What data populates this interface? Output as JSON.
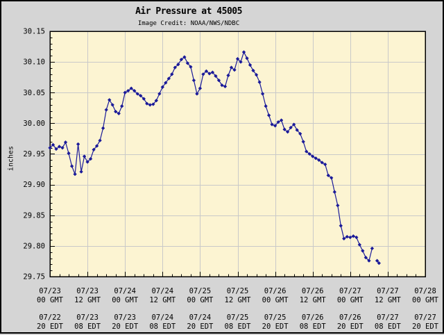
{
  "title": "Air Pressure at 45005",
  "subtitle": "Image Credit: NOAA/NWS/NDBC",
  "colors": {
    "page_background": "#d5d5d5",
    "plot_background": "#fcf4d2",
    "grid": "#c9c9c9",
    "line": "#1a1a99",
    "border": "#000000",
    "text": "#000000"
  },
  "chart_data": {
    "type": "line",
    "title": "Air Pressure at 45005",
    "subtitle": "Image Credit: NOAA/NWS/NDBC",
    "ylabel": "inches",
    "xlabel": "",
    "ylim": [
      29.75,
      30.15
    ],
    "y_tick_step": 0.05,
    "y_minor_step": 0.01,
    "y_tick_labels": [
      "30.15",
      "30.10",
      "30.05",
      "30.00",
      "29.95",
      "29.90",
      "29.85",
      "29.80",
      "29.75"
    ],
    "xlim_hours": [
      0,
      120
    ],
    "x_major_step_hours": 12,
    "x_minor_step_hours": 3,
    "x_tick_labels_gmt": [
      [
        "07/23",
        "00 GMT"
      ],
      [
        "07/23",
        "12 GMT"
      ],
      [
        "07/24",
        "00 GMT"
      ],
      [
        "07/24",
        "12 GMT"
      ],
      [
        "07/25",
        "00 GMT"
      ],
      [
        "07/25",
        "12 GMT"
      ],
      [
        "07/26",
        "00 GMT"
      ],
      [
        "07/26",
        "12 GMT"
      ],
      [
        "07/27",
        "00 GMT"
      ],
      [
        "07/27",
        "12 GMT"
      ],
      [
        "07/28",
        "00 GMT"
      ]
    ],
    "x_tick_labels_edt": [
      [
        "07/22",
        "20 EDT"
      ],
      [
        "07/23",
        "08 EDT"
      ],
      [
        "07/23",
        "20 EDT"
      ],
      [
        "07/24",
        "08 EDT"
      ],
      [
        "07/24",
        "20 EDT"
      ],
      [
        "07/25",
        "08 EDT"
      ],
      [
        "07/25",
        "20 EDT"
      ],
      [
        "07/26",
        "08 EDT"
      ],
      [
        "07/26",
        "20 EDT"
      ],
      [
        "07/27",
        "08 EDT"
      ],
      [
        "07/27",
        "20 EDT"
      ]
    ],
    "grid": true,
    "legend": "none",
    "marker": "diamond",
    "series": [
      {
        "name": "Air Pressure",
        "units": "inches",
        "interval": "hourly, hours since 07/23 00 GMT",
        "segments": [
          {
            "start_hour": 0,
            "step_hours": 1,
            "values": [
              29.96,
              29.965,
              29.958,
              29.962,
              29.96,
              29.969,
              29.951,
              29.93,
              29.917,
              29.966,
              29.921,
              29.946,
              29.937,
              29.942,
              29.957,
              29.963,
              29.972,
              29.992,
              30.022,
              30.038,
              30.03,
              30.019,
              30.016,
              30.028,
              30.05,
              30.053,
              30.057,
              30.053,
              30.048,
              30.045,
              30.04,
              30.032,
              30.03,
              30.031,
              30.037,
              30.048,
              30.059,
              30.066,
              30.073,
              30.08,
              30.091,
              30.096,
              30.104,
              30.108,
              30.098,
              30.092,
              30.07,
              30.048,
              30.057,
              30.08,
              30.085,
              30.081,
              30.083,
              30.077,
              30.07,
              30.062,
              30.06,
              30.078,
              30.091,
              30.087,
              30.105,
              30.1,
              30.116,
              30.106,
              30.095,
              30.086,
              30.079,
              30.067,
              30.048,
              30.028,
              30.013,
              29.998,
              29.996,
              30.002,
              30.005,
              29.99,
              29.986,
              29.993,
              29.998,
              29.989,
              29.983,
              29.97,
              29.954,
              29.95,
              29.946,
              29.943,
              29.94,
              29.936,
              29.933,
              29.915,
              29.911,
              29.888,
              29.866,
              29.833,
              29.812,
              29.815,
              29.814,
              29.816,
              29.814,
              29.802,
              29.792,
              29.781,
              29.776,
              29.796
            ]
          },
          {
            "start_hour": 104.6,
            "step_hours": 0.6,
            "values": [
              29.776,
              29.772
            ]
          }
        ]
      }
    ]
  }
}
